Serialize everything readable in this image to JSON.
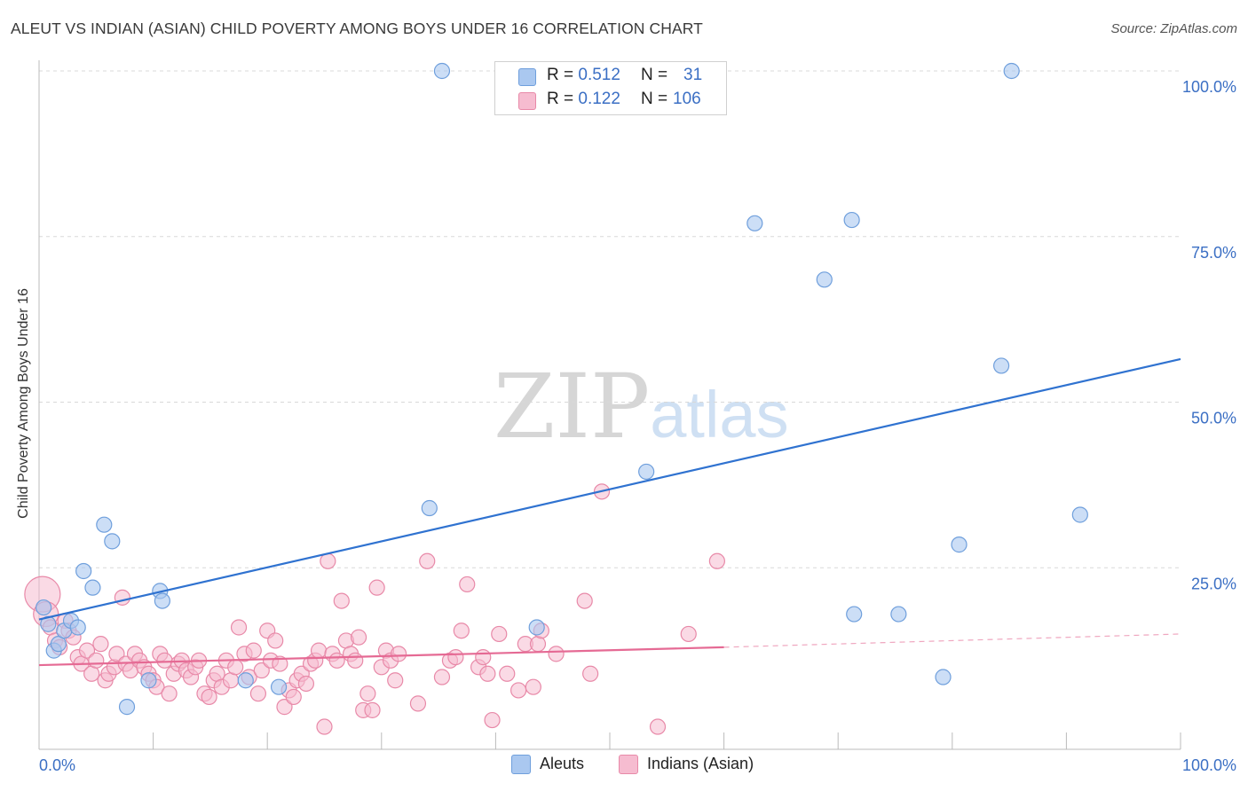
{
  "title": "ALEUT VS INDIAN (ASIAN) CHILD POVERTY AMONG BOYS UNDER 16 CORRELATION CHART",
  "source": "Source: ZipAtlas.com",
  "watermark": {
    "zip": "ZIP",
    "atlas": "atlas"
  },
  "legend": {
    "rows": [
      {
        "r_label": "R =",
        "r_value": "0.512",
        "n_label": "N =",
        "n_value": "31"
      },
      {
        "r_label": "R =",
        "r_value": "0.122",
        "n_label": "N =",
        "n_value": "106"
      }
    ],
    "bottom": [
      "Aleuts",
      "Indians (Asian)"
    ]
  },
  "colors": {
    "aleut_fill": "#aac8f0",
    "aleut_stroke": "#6f9fdc",
    "aleut_line": "#2f72d0",
    "indian_fill": "#f6bcd0",
    "indian_stroke": "#e889a8",
    "indian_line": "#e56a94",
    "axis_text": "#3b6fc4",
    "grid": "#d8d8d8"
  },
  "chart_data": {
    "type": "scatter",
    "title": "ALEUT VS INDIAN (ASIAN) CHILD POVERTY AMONG BOYS UNDER 16 CORRELATION CHART",
    "xlabel": "",
    "ylabel": "Child Poverty Among Boys Under 16",
    "xlim": [
      0,
      100
    ],
    "ylim": [
      0,
      100
    ],
    "x_tick_labels": [
      "0.0%",
      "100.0%"
    ],
    "y_ticks": [
      25,
      50,
      75,
      100
    ],
    "y_tick_labels": [
      "25.0%",
      "50.0%",
      "75.0%",
      "100.0%"
    ],
    "grid": true,
    "series": [
      {
        "name": "Aleuts",
        "R": 0.512,
        "N": 31,
        "trend": {
          "x0": 0,
          "y0": 17.2,
          "x1": 100,
          "y1": 56.5
        },
        "points": [
          {
            "x": 0.4,
            "y": 19.0
          },
          {
            "x": 0.8,
            "y": 16.5
          },
          {
            "x": 1.3,
            "y": 12.5
          },
          {
            "x": 1.7,
            "y": 13.5
          },
          {
            "x": 2.2,
            "y": 15.5
          },
          {
            "x": 2.8,
            "y": 17.0
          },
          {
            "x": 3.4,
            "y": 16.0
          },
          {
            "x": 3.9,
            "y": 24.5
          },
          {
            "x": 4.7,
            "y": 22.0
          },
          {
            "x": 5.7,
            "y": 31.5
          },
          {
            "x": 6.4,
            "y": 29.0
          },
          {
            "x": 7.7,
            "y": 4.0
          },
          {
            "x": 9.6,
            "y": 8.0
          },
          {
            "x": 10.6,
            "y": 21.5
          },
          {
            "x": 10.8,
            "y": 20.0
          },
          {
            "x": 18.1,
            "y": 8.0
          },
          {
            "x": 21.0,
            "y": 7.0
          },
          {
            "x": 34.2,
            "y": 34.0
          },
          {
            "x": 35.3,
            "y": 100.0
          },
          {
            "x": 43.6,
            "y": 16.0
          },
          {
            "x": 53.2,
            "y": 39.5
          },
          {
            "x": 62.7,
            "y": 77.0
          },
          {
            "x": 68.8,
            "y": 68.5
          },
          {
            "x": 71.2,
            "y": 77.5
          },
          {
            "x": 71.4,
            "y": 18.0
          },
          {
            "x": 75.3,
            "y": 18.0
          },
          {
            "x": 79.2,
            "y": 8.5
          },
          {
            "x": 80.6,
            "y": 28.5
          },
          {
            "x": 84.3,
            "y": 55.5
          },
          {
            "x": 85.2,
            "y": 100.0
          },
          {
            "x": 91.2,
            "y": 33.0
          }
        ]
      },
      {
        "name": "Indians (Asian)",
        "R": 0.122,
        "N": 106,
        "trend": {
          "x0": 0,
          "y0": 10.3,
          "x1": 60,
          "y1": 13.0,
          "dash_to_x": 100,
          "dash_to_y": 15.0
        },
        "points": [
          {
            "x": 0.3,
            "y": 21.0,
            "r": 20
          },
          {
            "x": 0.6,
            "y": 18.0,
            "r": 14
          },
          {
            "x": 1.0,
            "y": 16.0
          },
          {
            "x": 1.4,
            "y": 14.0
          },
          {
            "x": 1.8,
            "y": 13.0
          },
          {
            "x": 2.3,
            "y": 17.0
          },
          {
            "x": 2.6,
            "y": 15.5
          },
          {
            "x": 3.0,
            "y": 14.5
          },
          {
            "x": 3.4,
            "y": 11.5
          },
          {
            "x": 3.7,
            "y": 10.5
          },
          {
            "x": 4.2,
            "y": 12.5
          },
          {
            "x": 4.6,
            "y": 9.0
          },
          {
            "x": 5.0,
            "y": 11.0
          },
          {
            "x": 5.4,
            "y": 13.5
          },
          {
            "x": 5.8,
            "y": 8.0
          },
          {
            "x": 6.1,
            "y": 9.0
          },
          {
            "x": 6.6,
            "y": 10.0
          },
          {
            "x": 6.8,
            "y": 12.0
          },
          {
            "x": 7.3,
            "y": 20.5
          },
          {
            "x": 7.6,
            "y": 10.5
          },
          {
            "x": 8.0,
            "y": 9.5
          },
          {
            "x": 8.4,
            "y": 12.0
          },
          {
            "x": 8.8,
            "y": 11.0
          },
          {
            "x": 9.2,
            "y": 10.0
          },
          {
            "x": 9.6,
            "y": 9.0
          },
          {
            "x": 10.0,
            "y": 8.0
          },
          {
            "x": 10.3,
            "y": 7.0
          },
          {
            "x": 10.6,
            "y": 12.0
          },
          {
            "x": 11.0,
            "y": 11.0
          },
          {
            "x": 11.4,
            "y": 6.0
          },
          {
            "x": 11.8,
            "y": 9.0
          },
          {
            "x": 12.2,
            "y": 10.5
          },
          {
            "x": 12.5,
            "y": 11.0
          },
          {
            "x": 12.9,
            "y": 9.5
          },
          {
            "x": 13.3,
            "y": 8.5
          },
          {
            "x": 13.7,
            "y": 10.0
          },
          {
            "x": 14.0,
            "y": 11.0
          },
          {
            "x": 14.5,
            "y": 6.0
          },
          {
            "x": 14.9,
            "y": 5.5
          },
          {
            "x": 15.3,
            "y": 8.0
          },
          {
            "x": 15.6,
            "y": 9.0
          },
          {
            "x": 16.0,
            "y": 7.0
          },
          {
            "x": 16.4,
            "y": 11.0
          },
          {
            "x": 16.8,
            "y": 8.0
          },
          {
            "x": 17.2,
            "y": 10.0
          },
          {
            "x": 17.5,
            "y": 16.0
          },
          {
            "x": 18.0,
            "y": 12.0
          },
          {
            "x": 18.4,
            "y": 8.5
          },
          {
            "x": 18.8,
            "y": 12.5
          },
          {
            "x": 19.2,
            "y": 6.0
          },
          {
            "x": 19.5,
            "y": 9.5
          },
          {
            "x": 20.0,
            "y": 15.5
          },
          {
            "x": 20.3,
            "y": 11.0
          },
          {
            "x": 20.7,
            "y": 14.0
          },
          {
            "x": 21.1,
            "y": 10.5
          },
          {
            "x": 21.5,
            "y": 4.0
          },
          {
            "x": 21.9,
            "y": 6.5
          },
          {
            "x": 22.3,
            "y": 5.5
          },
          {
            "x": 22.6,
            "y": 8.0
          },
          {
            "x": 23.0,
            "y": 9.0
          },
          {
            "x": 23.4,
            "y": 7.5
          },
          {
            "x": 23.8,
            "y": 10.5
          },
          {
            "x": 24.2,
            "y": 11.0
          },
          {
            "x": 24.5,
            "y": 12.5
          },
          {
            "x": 25.0,
            "y": 1.0
          },
          {
            "x": 25.3,
            "y": 26.0
          },
          {
            "x": 25.7,
            "y": 12.0
          },
          {
            "x": 26.1,
            "y": 11.0
          },
          {
            "x": 26.5,
            "y": 20.0
          },
          {
            "x": 26.9,
            "y": 14.0
          },
          {
            "x": 27.3,
            "y": 12.0
          },
          {
            "x": 27.7,
            "y": 11.0
          },
          {
            "x": 28.0,
            "y": 14.5
          },
          {
            "x": 28.4,
            "y": 3.5
          },
          {
            "x": 28.8,
            "y": 6.0
          },
          {
            "x": 29.2,
            "y": 3.5
          },
          {
            "x": 29.6,
            "y": 22.0
          },
          {
            "x": 30.0,
            "y": 10.0
          },
          {
            "x": 30.4,
            "y": 12.5
          },
          {
            "x": 30.8,
            "y": 11.0
          },
          {
            "x": 31.2,
            "y": 8.0
          },
          {
            "x": 31.5,
            "y": 12.0
          },
          {
            "x": 33.2,
            "y": 4.5
          },
          {
            "x": 34.0,
            "y": 26.0
          },
          {
            "x": 35.3,
            "y": 8.5
          },
          {
            "x": 36.0,
            "y": 11.0
          },
          {
            "x": 36.5,
            "y": 11.5
          },
          {
            "x": 37.0,
            "y": 15.5
          },
          {
            "x": 37.5,
            "y": 22.5
          },
          {
            "x": 38.5,
            "y": 10.0
          },
          {
            "x": 38.9,
            "y": 11.5
          },
          {
            "x": 39.3,
            "y": 9.0
          },
          {
            "x": 39.7,
            "y": 2.0
          },
          {
            "x": 40.3,
            "y": 15.0
          },
          {
            "x": 41.0,
            "y": 9.0
          },
          {
            "x": 42.0,
            "y": 6.5
          },
          {
            "x": 42.6,
            "y": 13.5
          },
          {
            "x": 43.3,
            "y": 7.0
          },
          {
            "x": 43.7,
            "y": 13.5
          },
          {
            "x": 44.0,
            "y": 15.5
          },
          {
            "x": 45.3,
            "y": 12.0
          },
          {
            "x": 47.8,
            "y": 20.0
          },
          {
            "x": 48.3,
            "y": 9.0
          },
          {
            "x": 49.3,
            "y": 36.5
          },
          {
            "x": 54.2,
            "y": 1.0
          },
          {
            "x": 56.9,
            "y": 15.0
          },
          {
            "x": 59.4,
            "y": 26.0
          }
        ]
      }
    ]
  }
}
